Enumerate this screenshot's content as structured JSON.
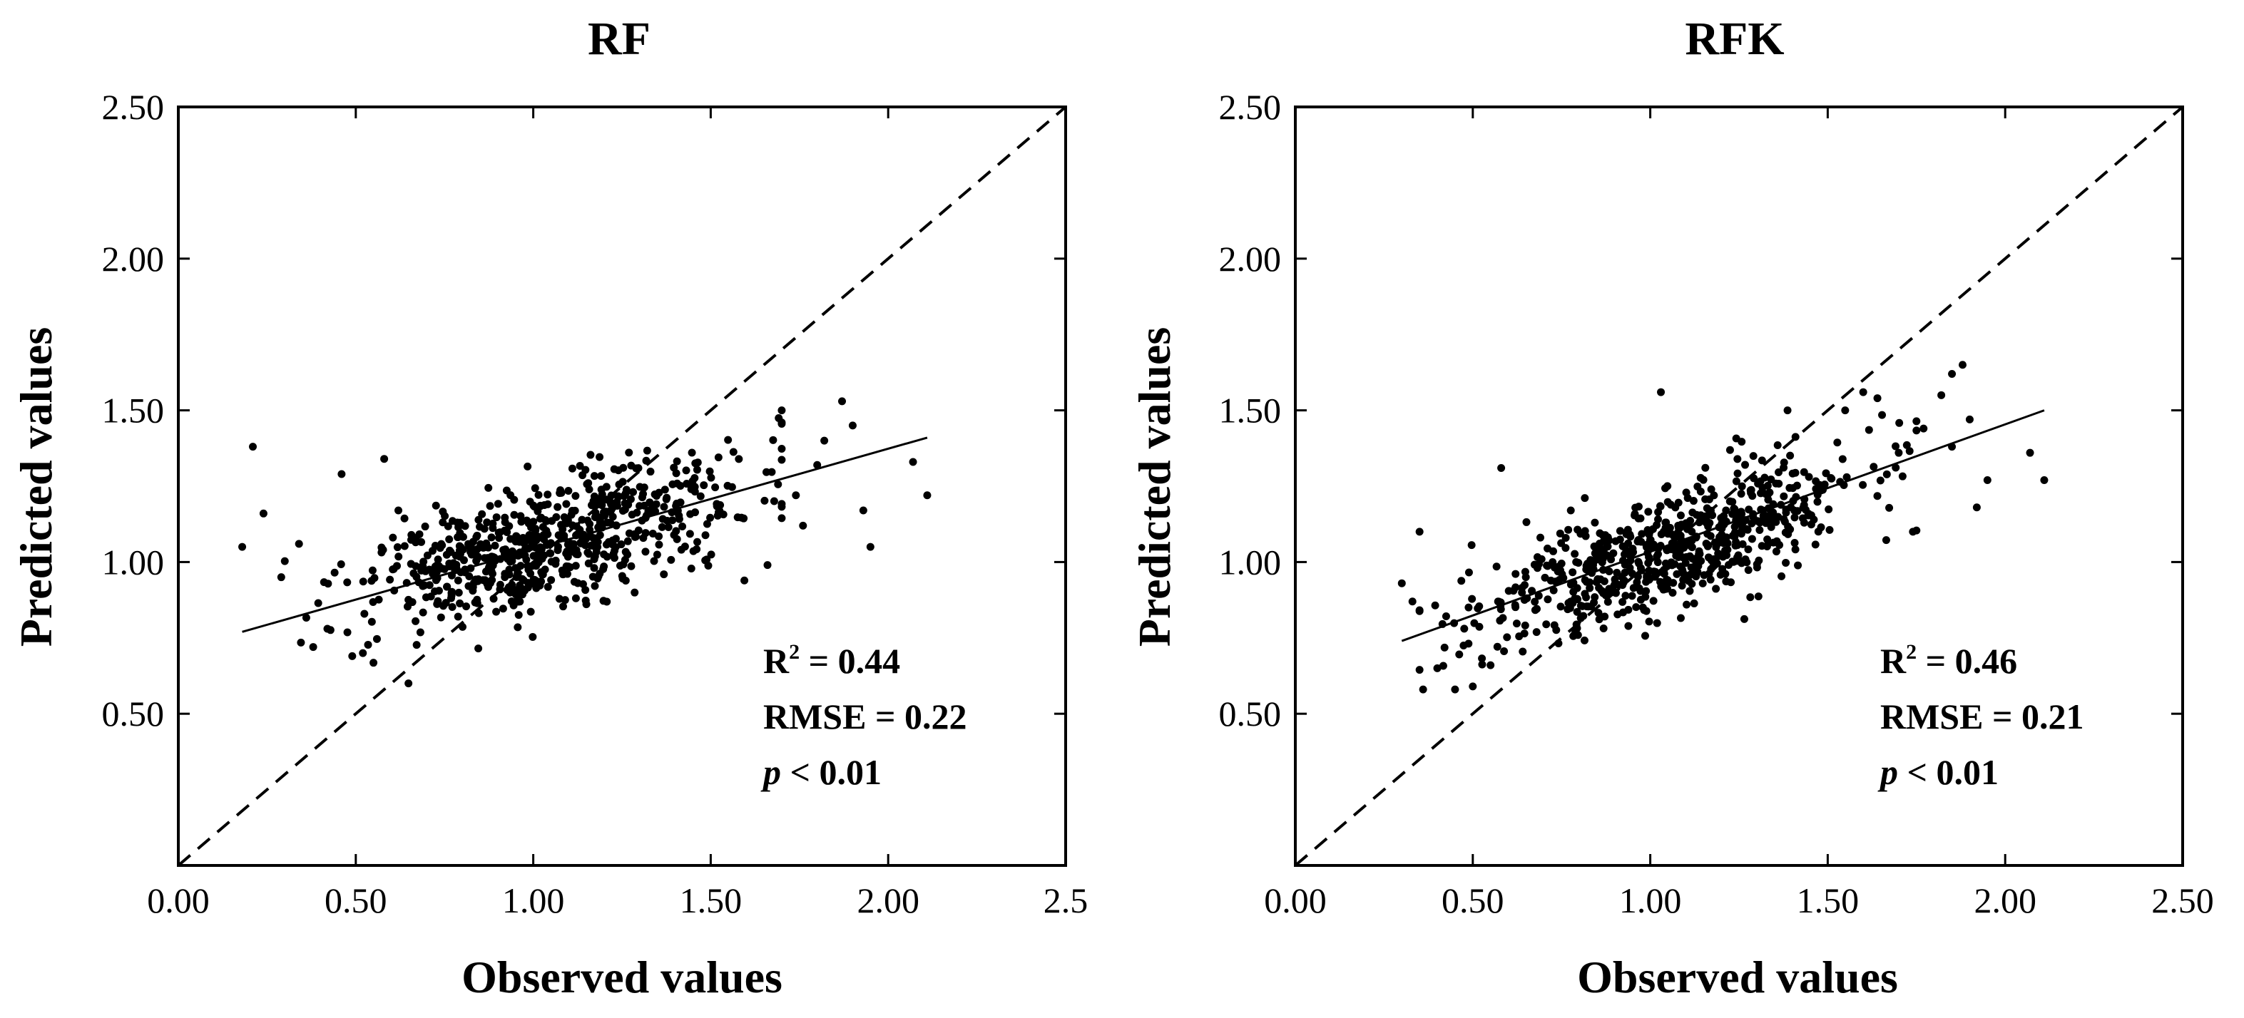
{
  "chart_data": [
    {
      "type": "scatter",
      "title": "RF",
      "xlabel": "Observed values",
      "ylabel": "Predicted values",
      "xlim": [
        0,
        2.5
      ],
      "ylim": [
        0,
        2.5
      ],
      "xticks": [
        0,
        0.5,
        1.0,
        1.5,
        2.0,
        2.5
      ],
      "xtick_labels": [
        "0.00",
        "0.50",
        "1.00",
        "1.50",
        "2.00",
        "2.5"
      ],
      "yticks": [
        0.5,
        1.0,
        1.5,
        2.0,
        2.5
      ],
      "ytick_labels": [
        "0.50",
        "1.00",
        "1.50",
        "2.00",
        "2.50"
      ],
      "reference_line": {
        "style": "dashed",
        "from": [
          0,
          0
        ],
        "to": [
          2.5,
          2.5
        ]
      },
      "fit_line": {
        "from": [
          0.18,
          0.77
        ],
        "to": [
          2.11,
          1.41
        ]
      },
      "stats": {
        "r2_label": "R",
        "r2_sup": "2",
        "r2_value": " = 0.44",
        "rmse": "RMSE = 0.22",
        "p_symbol": "p",
        "p_value": " < 0.01"
      },
      "cloud": {
        "n": 700,
        "x_mean": 1.05,
        "x_sd": 0.27,
        "x_min": 0.3,
        "x_max": 1.7,
        "slope": 0.33,
        "intercept": 0.71,
        "noise_sd": 0.1
      },
      "points": [
        [
          0.18,
          1.05
        ],
        [
          0.21,
          1.38
        ],
        [
          0.24,
          1.16
        ],
        [
          0.29,
          0.95
        ],
        [
          0.34,
          1.06
        ],
        [
          0.38,
          0.72
        ],
        [
          0.42,
          0.78
        ],
        [
          0.46,
          1.29
        ],
        [
          0.49,
          0.69
        ],
        [
          0.52,
          0.7
        ],
        [
          0.58,
          1.34
        ],
        [
          0.62,
          1.17
        ],
        [
          1.87,
          1.53
        ],
        [
          1.9,
          1.45
        ],
        [
          1.95,
          1.05
        ],
        [
          2.07,
          1.33
        ],
        [
          2.11,
          1.22
        ],
        [
          1.93,
          1.17
        ],
        [
          1.8,
          1.32
        ],
        [
          1.76,
          1.12
        ],
        [
          1.7,
          1.46
        ],
        [
          1.74,
          1.22
        ],
        [
          1.66,
          0.99
        ],
        [
          1.82,
          1.4
        ]
      ]
    },
    {
      "type": "scatter",
      "title": "RFK",
      "xlabel": "Observed values",
      "ylabel": "Predicted values",
      "xlim": [
        0,
        2.5
      ],
      "ylim": [
        0,
        2.5
      ],
      "xticks": [
        0,
        0.5,
        1.0,
        1.5,
        2.0,
        2.5
      ],
      "xtick_labels": [
        "0.00",
        "0.50",
        "1.00",
        "1.50",
        "2.00",
        "2.50"
      ],
      "yticks": [
        0.5,
        1.0,
        1.5,
        2.0,
        2.5
      ],
      "ytick_labels": [
        "0.50",
        "1.00",
        "1.50",
        "2.00",
        "2.50"
      ],
      "reference_line": {
        "style": "dashed",
        "from": [
          0,
          0
        ],
        "to": [
          2.5,
          2.5
        ]
      },
      "fit_line": {
        "from": [
          0.3,
          0.74
        ],
        "to": [
          2.11,
          1.5
        ]
      },
      "stats": {
        "r2_label": "R",
        "r2_sup": "2",
        "r2_value": " = 0.46",
        "rmse": "RMSE = 0.21",
        "p_symbol": "p",
        "p_value": " < 0.01"
      },
      "cloud": {
        "n": 700,
        "x_mean": 1.05,
        "x_sd": 0.27,
        "x_min": 0.35,
        "x_max": 1.75,
        "slope": 0.42,
        "intercept": 0.6,
        "noise_sd": 0.1
      },
      "points": [
        [
          0.3,
          0.93
        ],
        [
          0.33,
          0.87
        ],
        [
          0.35,
          1.1
        ],
        [
          0.36,
          0.58
        ],
        [
          0.4,
          0.65
        ],
        [
          0.45,
          0.58
        ],
        [
          0.5,
          0.59
        ],
        [
          0.55,
          0.66
        ],
        [
          0.58,
          1.31
        ],
        [
          1.03,
          1.56
        ],
        [
          1.85,
          1.62
        ],
        [
          1.88,
          1.65
        ],
        [
          1.82,
          1.55
        ],
        [
          1.92,
          1.18
        ],
        [
          1.95,
          1.27
        ],
        [
          2.07,
          1.36
        ],
        [
          2.11,
          1.27
        ],
        [
          1.77,
          1.44
        ],
        [
          1.7,
          1.36
        ],
        [
          1.74,
          1.1
        ],
        [
          1.64,
          1.54
        ],
        [
          1.6,
          1.56
        ],
        [
          1.85,
          1.38
        ],
        [
          1.9,
          1.47
        ]
      ]
    }
  ]
}
